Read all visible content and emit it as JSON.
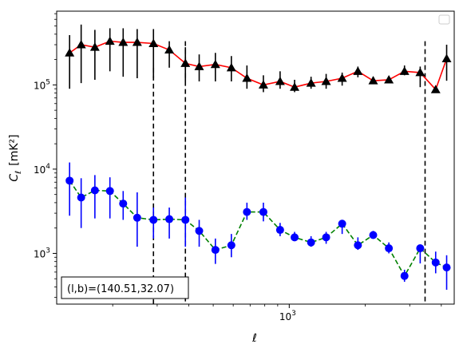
{
  "chart_data": {
    "type": "scatter",
    "title": "",
    "xlabel": "ℓ",
    "ylabel_main": "C",
    "ylabel_sub": "ℓ",
    "ylabel_unit": "[mK²]",
    "xscale": "log",
    "yscale": "log",
    "xlim": [
      120,
      4500
    ],
    "ylim": [
      250,
      750000
    ],
    "x_major_ticks": [
      {
        "value": 1000,
        "base": "10",
        "exp": "3"
      }
    ],
    "y_major_ticks": [
      {
        "value": 1000,
        "base": "10",
        "exp": "3"
      },
      {
        "value": 10000,
        "base": "10",
        "exp": "4"
      },
      {
        "value": 100000,
        "base": "10",
        "exp": "5"
      }
    ],
    "legend": {
      "placement": "top-right",
      "entries": []
    },
    "annotation": "(l,b)=(140.51,32.07)",
    "vlines": [
      {
        "x": 290,
        "ymax": 160000
      },
      {
        "x": 388,
        "ymax": 330000
      },
      {
        "x": 3450,
        "ymax": 330000
      }
    ],
    "series": [
      {
        "marker": "triangle",
        "marker_color": "#000000",
        "line_color": "#ff0000",
        "line_style": "solid",
        "errorbar_color": "#000000",
        "x": [
          135,
          150,
          170,
          195,
          220,
          250,
          290,
          335,
          388,
          440,
          510,
          590,
          680,
          790,
          920,
          1050,
          1220,
          1400,
          1620,
          1870,
          2150,
          2480,
          2860,
          3300,
          3800,
          4200
        ],
        "y": [
          240000,
          300000,
          280000,
          330000,
          320000,
          320000,
          310000,
          260000,
          180000,
          165000,
          175000,
          160000,
          120000,
          100000,
          110000,
          94000,
          105000,
          110000,
          120000,
          145000,
          112000,
          115000,
          145000,
          140000,
          88000,
          205000
        ],
        "ylow": [
          90000,
          105000,
          115000,
          145000,
          125000,
          120000,
          120000,
          160000,
          110000,
          110000,
          110000,
          110000,
          90000,
          82000,
          90000,
          82000,
          90000,
          90000,
          98000,
          123000,
          108000,
          108000,
          130000,
          94000,
          82000,
          112000
        ],
        "yhigh": [
          390000,
          520000,
          450000,
          470000,
          470000,
          460000,
          460000,
          330000,
          280000,
          230000,
          240000,
          220000,
          170000,
          130000,
          145000,
          115000,
          125000,
          135000,
          140000,
          165000,
          125000,
          125000,
          170000,
          165000,
          95000,
          300000
        ]
      },
      {
        "marker": "circle",
        "marker_color": "#0000ff",
        "line_color": "#008000",
        "line_style": "dashed",
        "errorbar_color": "#0000ff",
        "x": [
          135,
          150,
          170,
          195,
          220,
          250,
          290,
          335,
          388,
          440,
          510,
          590,
          680,
          790,
          920,
          1050,
          1220,
          1400,
          1620,
          1870,
          2150,
          2480,
          2860,
          3300,
          3800,
          4200
        ],
        "y": [
          7300,
          4600,
          5600,
          5500,
          3900,
          2650,
          2500,
          2550,
          2500,
          1850,
          1100,
          1250,
          3100,
          3100,
          1900,
          1550,
          1350,
          1550,
          2250,
          1250,
          1650,
          1150,
          540,
          1150,
          780,
          680
        ],
        "ylow": [
          2800,
          2000,
          2600,
          2600,
          2500,
          1200,
          1500,
          1500,
          1200,
          1200,
          750,
          900,
          2500,
          2400,
          1600,
          1400,
          1200,
          1300,
          1700,
          1100,
          1500,
          1000,
          460,
          760,
          580,
          370
        ],
        "yhigh": [
          12000,
          7800,
          8500,
          8000,
          5500,
          5300,
          3500,
          3500,
          4600,
          2500,
          1500,
          1700,
          4000,
          4000,
          2300,
          1800,
          1600,
          1800,
          2500,
          1550,
          1850,
          1350,
          640,
          1250,
          1050,
          950
        ]
      }
    ]
  }
}
